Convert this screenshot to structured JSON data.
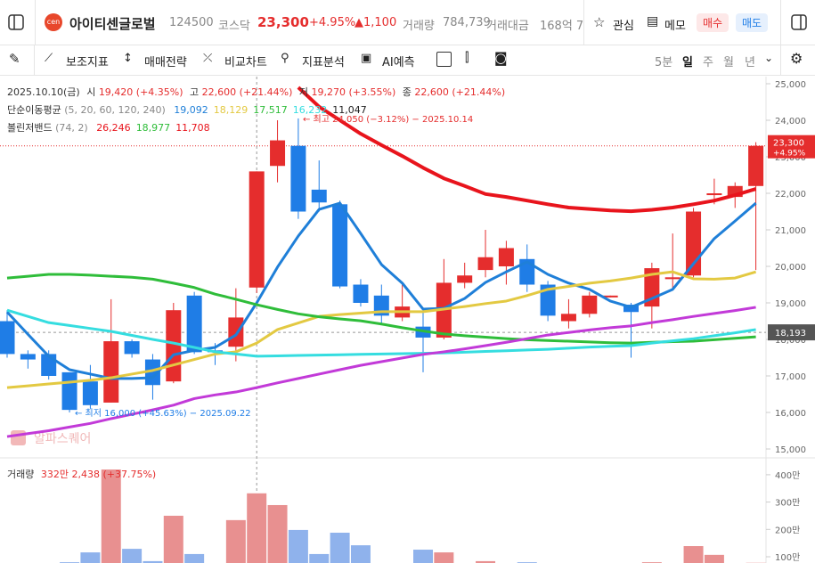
{
  "header": {
    "name": "아이티센글로벌",
    "logo": "cen",
    "code": "124500",
    "market": "코스닥",
    "price": "23,300",
    "change_pct": "+4.95%",
    "change": "▲1,100",
    "volume_label": "거래량",
    "volume": "784,739",
    "amount_label": "거래대금",
    "amount": "168억 7",
    "watch": "관심",
    "memo": "메모",
    "buy": "매수",
    "sell": "매도"
  },
  "toolbar": {
    "items": [
      "보조지표",
      "매매전략",
      "비교차트",
      "지표분석",
      "AI예측"
    ],
    "periods": [
      "5분",
      "일",
      "주",
      "월",
      "년"
    ]
  },
  "indicators": {
    "date": "2025.10.10(금)",
    "open_label": "시",
    "open": "19,420 (+4.35%)",
    "high_label": "고",
    "high": "22,600 (+21.44%)",
    "low_label": "저",
    "low": "19,270 (+3.55%)",
    "close_label": "종",
    "close": "22,600 (+21.44%)",
    "ma_label": "단순이동평균",
    "ma_params": "(5, 20, 60, 120, 240)",
    "ma_values": [
      "19,092",
      "18,129",
      "17,517",
      "16,232",
      "11,047"
    ],
    "bb_label": "볼린저밴드",
    "bb_params": "(74, 2)",
    "bb_values": [
      "26,246",
      "18,977",
      "11,708"
    ],
    "vol_label": "거래량",
    "vol_value": "332만 2,438 (+37.75%)"
  },
  "chart_data": [
    {
      "type": "candlestick",
      "up_color": "#e52d2d",
      "down_color": "#1f7de6",
      "open": [
        18500,
        17600,
        17600,
        17100,
        16850,
        16270,
        17950,
        17450,
        16850,
        19200,
        17700,
        17800,
        19420,
        22750,
        23300,
        22100,
        21700,
        19500,
        19200,
        18600,
        18350,
        18050,
        19550,
        19900,
        20000,
        20200,
        19500,
        18500,
        18700,
        19150,
        18950,
        18900,
        19650,
        19750,
        21950,
        21900,
        22200
      ],
      "high": [
        18800,
        17700,
        17700,
        17100,
        17300,
        19100,
        18000,
        17600,
        19000,
        19300,
        17900,
        19400,
        22600,
        24000,
        24050,
        22900,
        21800,
        19650,
        19500,
        19500,
        18800,
        20200,
        20100,
        21000,
        20700,
        20600,
        19600,
        19100,
        19300,
        19200,
        19000,
        20100,
        20900,
        21600,
        22400,
        22300,
        23400
      ],
      "low": [
        17500,
        17200,
        16900,
        16000,
        16100,
        16270,
        17500,
        16350,
        16800,
        17600,
        17300,
        17400,
        19270,
        22300,
        21300,
        21500,
        19400,
        18900,
        18400,
        18500,
        17100,
        18000,
        19400,
        19700,
        19500,
        19300,
        18500,
        18300,
        18600,
        19150,
        17500,
        18300,
        19400,
        19700,
        21700,
        21600,
        19900
      ],
      "close": [
        17600,
        17450,
        17000,
        16070,
        16200,
        17950,
        17600,
        16750,
        18800,
        17650,
        17650,
        18600,
        22600,
        23450,
        21500,
        21750,
        19450,
        19000,
        18650,
        18900,
        18050,
        19550,
        19750,
        20250,
        20500,
        19500,
        18650,
        18700,
        19200,
        19200,
        18750,
        19950,
        19700,
        21500,
        22000,
        22200,
        23300
      ],
      "series": [
        {
          "color": "#1f7fd8",
          "values": [
            18750,
            18140,
            17540,
            17170,
            17050,
            16930,
            16930,
            16950,
            17580,
            17700,
            17780,
            18120,
            19000,
            19980,
            20830,
            21560,
            21730,
            20900,
            20050,
            19540,
            18830,
            18850,
            19120,
            19560,
            19850,
            20120,
            19780,
            19540,
            19370,
            19050,
            18880,
            19120,
            19370,
            20070,
            20760,
            21240,
            21730
          ]
        },
        {
          "color": "#e3c942",
          "values": [
            16680,
            16730,
            16780,
            16830,
            16880,
            16950,
            17050,
            17150,
            17300,
            17450,
            17600,
            17660,
            17900,
            18270,
            18450,
            18630,
            18680,
            18720,
            18760,
            18760,
            18760,
            18830,
            18900,
            18980,
            19050,
            19200,
            19370,
            19450,
            19540,
            19600,
            19680,
            19780,
            19850,
            19660,
            19650,
            19680,
            19850
          ]
        },
        {
          "color": "#2fbd3a",
          "values": [
            19680,
            19730,
            19780,
            19780,
            19760,
            19730,
            19700,
            19650,
            19540,
            19420,
            19240,
            19100,
            18950,
            18820,
            18700,
            18620,
            18560,
            18510,
            18420,
            18320,
            18230,
            18150,
            18100,
            18060,
            18020,
            17990,
            17970,
            17950,
            17930,
            17910,
            17900,
            17920,
            17940,
            17950,
            17990,
            18030,
            18070
          ]
        },
        {
          "color": "#35dde0",
          "values": [
            18800,
            18630,
            18460,
            18380,
            18300,
            18220,
            18110,
            18000,
            17900,
            17780,
            17660,
            17600,
            17540,
            17550,
            17560,
            17570,
            17580,
            17590,
            17600,
            17610,
            17620,
            17630,
            17650,
            17670,
            17690,
            17710,
            17730,
            17760,
            17790,
            17810,
            17830,
            17900,
            17960,
            18020,
            18100,
            18180,
            18270
          ]
        },
        {
          "color": "#c23ad8",
          "values": [
            15340,
            15420,
            15500,
            15600,
            15700,
            15830,
            15950,
            16070,
            16200,
            16380,
            16480,
            16560,
            16680,
            16810,
            16930,
            17050,
            17170,
            17290,
            17390,
            17490,
            17590,
            17660,
            17740,
            17830,
            17920,
            18020,
            18120,
            18190,
            18260,
            18320,
            18370,
            18460,
            18540,
            18630,
            18710,
            18790,
            18880
          ]
        },
        {
          "color": "#e8141c",
          "values": [
            null,
            null,
            null,
            null,
            null,
            null,
            null,
            null,
            null,
            null,
            null,
            null,
            null,
            null,
            24900,
            24370,
            24000,
            23630,
            23320,
            23020,
            22700,
            22410,
            22200,
            21980,
            21900,
            21800,
            21700,
            21610,
            21570,
            21530,
            21510,
            21550,
            21610,
            21700,
            21800,
            21950,
            22120
          ]
        }
      ],
      "ylim": [
        14800,
        25200
      ],
      "yticks": [
        {
          "value": 15000,
          "label": "15,000"
        },
        {
          "value": 16000,
          "label": "16,000"
        },
        {
          "value": 17000,
          "label": "17,000"
        },
        {
          "value": 18000,
          "label": "18,000"
        },
        {
          "value": 19000,
          "label": "19,000"
        },
        {
          "value": 20000,
          "label": "20,000"
        },
        {
          "value": 21000,
          "label": "21,000"
        },
        {
          "value": 22000,
          "label": "22,000"
        },
        {
          "value": 23000,
          "label": "23,000"
        },
        {
          "value": 24000,
          "label": "24,000"
        },
        {
          "value": 25000,
          "label": "25,000"
        }
      ],
      "last_price": {
        "value": 23300,
        "label": "23,300",
        "change": "+4.95%"
      },
      "crosshair": {
        "value": 18193,
        "label": "18,193"
      },
      "annotations": {
        "high": "← 최고 24,050 (−3.12%) − 2025.10.14",
        "low": "← 최저 16,000 (+45.63%) − 2025.09.22",
        "watermark": "알파스퀘어"
      }
    },
    {
      "type": "bar",
      "up_color": "#e89090",
      "down_color": "#8fb2ec",
      "values": [
        70,
        60,
        70,
        80,
        116,
        419,
        129,
        84,
        250,
        110,
        70,
        234,
        332,
        289,
        198,
        110,
        188,
        142,
        70,
        60,
        126,
        116,
        70,
        84,
        70,
        80,
        60,
        50,
        60,
        50,
        70,
        80,
        60,
        139,
        107,
        70,
        78
      ],
      "ylim": [
        0,
        470
      ],
      "yticks": [
        {
          "value": 100,
          "label": "100만"
        },
        {
          "value": 200,
          "label": "200만"
        },
        {
          "value": 300,
          "label": "300만"
        },
        {
          "value": 400,
          "label": "400만"
        }
      ]
    }
  ]
}
